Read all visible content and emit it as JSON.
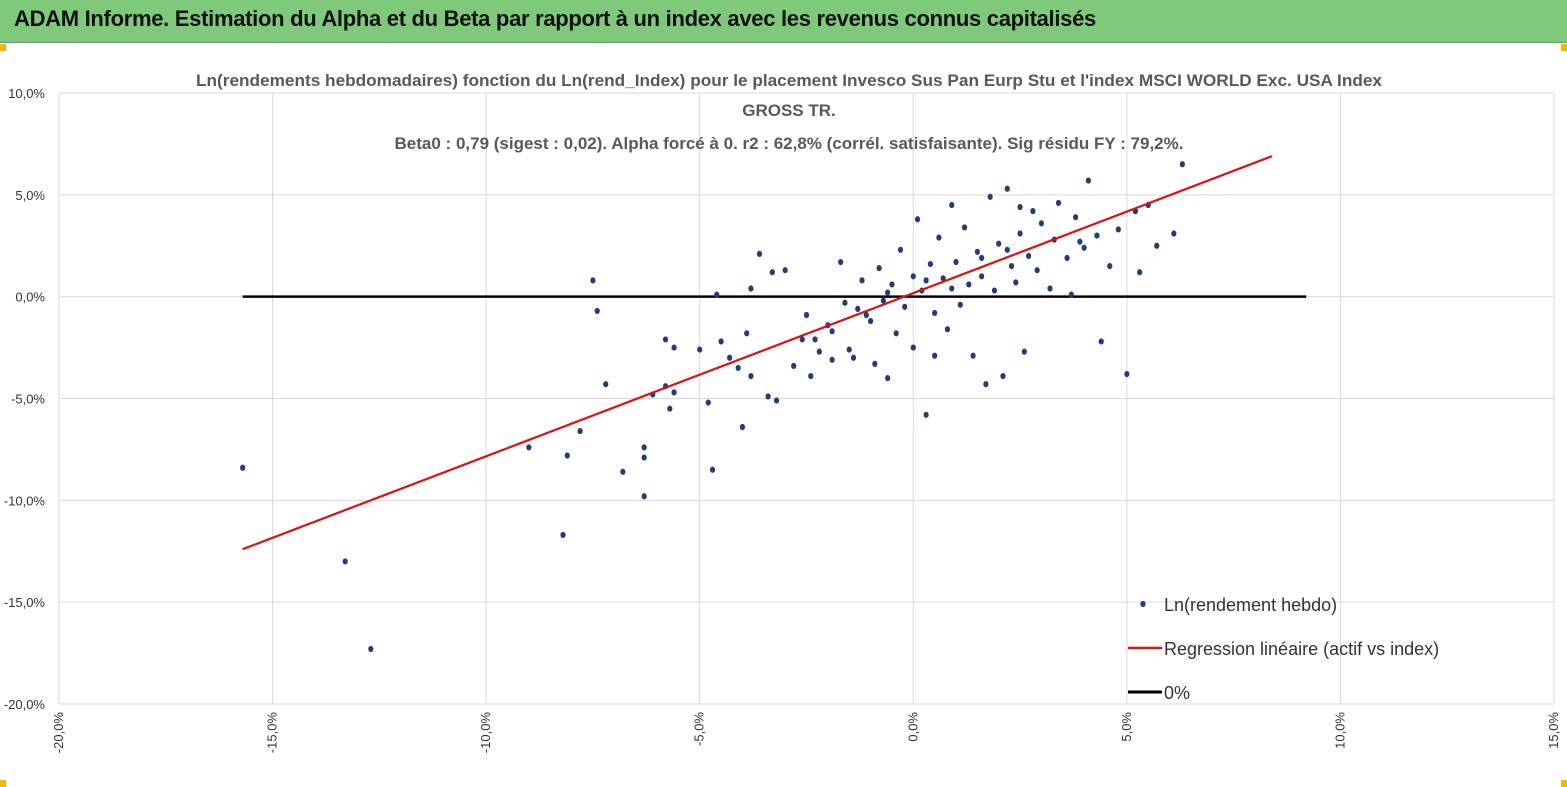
{
  "banner": {
    "title": "ADAM Informe. Estimation du Alpha et du Beta par rapport à un index avec les revenus connus capitalisés",
    "color": "#7fc97a"
  },
  "chart_data": {
    "type": "scatter",
    "title_lines": [
      "Ln(rendements hebdomadaires) fonction du Ln(rend_Index) pour le placement Invesco Sus Pan Eurp Stu  et l'index MSCI WORLD Exc. USA Index",
      "GROSS TR.",
      "Beta0 : 0,79  (sigest : 0,02).  Alpha forcé à 0. r2 : 62,8% (corrél. satisfaisante). Sig résidu FY : 79,2%."
    ],
    "xlim": [
      -20,
      15
    ],
    "ylim": [
      -20,
      10
    ],
    "x_ticks": [
      -20,
      -15,
      -10,
      -5,
      0,
      5,
      10,
      15
    ],
    "y_ticks": [
      10,
      5,
      0,
      -5,
      -10,
      -15,
      -20
    ],
    "x_tick_labels": [
      "-20,0%",
      "-15,0%",
      "-10,0%",
      "-5,0%",
      "0,0%",
      "5,0%",
      "10,0%",
      "15,0%"
    ],
    "y_tick_labels": [
      "10,0%",
      "5,0%",
      "0,0%",
      "-5,0%",
      "-10,0%",
      "-15,0%",
      "-20,0%"
    ],
    "grid": true,
    "legend_position": "bottom-right",
    "series": [
      {
        "name": "Ln(rendement hebdo)",
        "kind": "scatter",
        "color": "#1f3d7a",
        "points": [
          [
            -15.7,
            -8.4
          ],
          [
            -13.3,
            -13.0
          ],
          [
            -12.7,
            -17.3
          ],
          [
            -9.0,
            -7.4
          ],
          [
            -8.2,
            -11.7
          ],
          [
            -8.1,
            -7.8
          ],
          [
            -7.8,
            -6.6
          ],
          [
            -7.5,
            0.8
          ],
          [
            -7.4,
            -0.7
          ],
          [
            -7.2,
            -4.3
          ],
          [
            -6.8,
            -8.6
          ],
          [
            -6.3,
            -7.4
          ],
          [
            -6.3,
            -7.9
          ],
          [
            -6.3,
            -9.8
          ],
          [
            -6.1,
            -4.8
          ],
          [
            -5.8,
            -2.1
          ],
          [
            -5.8,
            -4.4
          ],
          [
            -5.7,
            -5.5
          ],
          [
            -5.6,
            -2.5
          ],
          [
            -5.6,
            -4.7
          ],
          [
            -5.0,
            -2.6
          ],
          [
            -4.8,
            -5.2
          ],
          [
            -4.7,
            -8.5
          ],
          [
            -4.6,
            0.1
          ],
          [
            -4.5,
            -2.2
          ],
          [
            -4.3,
            -3.0
          ],
          [
            -4.0,
            -6.4
          ],
          [
            -3.9,
            -1.8
          ],
          [
            -3.8,
            0.4
          ],
          [
            -3.6,
            2.1
          ],
          [
            -3.4,
            -4.9
          ],
          [
            -3.3,
            1.2
          ],
          [
            -3.2,
            -5.1
          ],
          [
            -3.0,
            1.3
          ],
          [
            -2.8,
            -3.4
          ],
          [
            -2.5,
            -0.9
          ],
          [
            -2.3,
            -2.1
          ],
          [
            -2.2,
            -2.7
          ],
          [
            -2.0,
            -1.4
          ],
          [
            -1.9,
            -3.1
          ],
          [
            -1.7,
            1.7
          ],
          [
            -1.6,
            -0.3
          ],
          [
            -1.5,
            -2.6
          ],
          [
            -1.3,
            -0.6
          ],
          [
            -1.2,
            0.8
          ],
          [
            -1.0,
            -1.2
          ],
          [
            -0.9,
            -3.3
          ],
          [
            -0.8,
            1.4
          ],
          [
            -0.7,
            -0.2
          ],
          [
            -0.5,
            0.6
          ],
          [
            -0.4,
            -1.8
          ],
          [
            -0.3,
            2.3
          ],
          [
            -0.2,
            -0.5
          ],
          [
            0.0,
            1.0
          ],
          [
            0.0,
            -2.5
          ],
          [
            0.1,
            3.8
          ],
          [
            0.2,
            0.3
          ],
          [
            0.3,
            -5.8
          ],
          [
            0.4,
            1.6
          ],
          [
            0.5,
            -0.8
          ],
          [
            0.6,
            2.9
          ],
          [
            0.7,
            0.9
          ],
          [
            0.8,
            -1.6
          ],
          [
            0.9,
            4.5
          ],
          [
            1.0,
            1.7
          ],
          [
            1.1,
            -0.4
          ],
          [
            1.2,
            3.4
          ],
          [
            1.3,
            0.6
          ],
          [
            1.4,
            -2.9
          ],
          [
            1.5,
            2.2
          ],
          [
            1.6,
            1.0
          ],
          [
            1.7,
            -4.3
          ],
          [
            1.8,
            4.9
          ],
          [
            1.9,
            0.3
          ],
          [
            2.0,
            2.6
          ],
          [
            2.1,
            -3.9
          ],
          [
            2.2,
            5.3
          ],
          [
            2.3,
            1.5
          ],
          [
            2.4,
            0.7
          ],
          [
            2.5,
            3.1
          ],
          [
            2.6,
            -2.7
          ],
          [
            2.7,
            2.0
          ],
          [
            2.8,
            4.2
          ],
          [
            2.9,
            1.3
          ],
          [
            3.0,
            3.6
          ],
          [
            3.2,
            0.4
          ],
          [
            3.3,
            2.8
          ],
          [
            3.4,
            4.6
          ],
          [
            3.6,
            1.9
          ],
          [
            3.7,
            0.1
          ],
          [
            3.8,
            3.9
          ],
          [
            4.0,
            2.4
          ],
          [
            4.1,
            5.7
          ],
          [
            4.3,
            3.0
          ],
          [
            4.4,
            -2.2
          ],
          [
            4.6,
            1.5
          ],
          [
            4.8,
            3.3
          ],
          [
            5.0,
            -3.8
          ],
          [
            5.2,
            4.2
          ],
          [
            5.3,
            1.2
          ],
          [
            5.5,
            4.5
          ],
          [
            5.7,
            2.5
          ],
          [
            6.1,
            3.1
          ],
          [
            6.3,
            6.5
          ],
          [
            -2.6,
            -2.1
          ],
          [
            -1.9,
            -1.7
          ],
          [
            -1.1,
            -0.9
          ],
          [
            -0.6,
            0.2
          ],
          [
            0.3,
            0.8
          ],
          [
            0.9,
            0.4
          ],
          [
            1.6,
            1.9
          ],
          [
            2.2,
            2.3
          ],
          [
            0.5,
            -2.9
          ],
          [
            -3.8,
            -3.9
          ],
          [
            -4.1,
            -3.5
          ],
          [
            -2.4,
            -3.9
          ],
          [
            -1.4,
            -3.0
          ],
          [
            3.9,
            2.7
          ],
          [
            2.5,
            4.4
          ],
          [
            -0.6,
            -4.0
          ]
        ]
      },
      {
        "name": "Regression linéaire (actif vs index)",
        "kind": "line",
        "color": "#e01010",
        "points": [
          [
            -15.7,
            -12.4
          ],
          [
            8.4,
            6.9
          ]
        ]
      },
      {
        "name": "0%",
        "kind": "line",
        "color": "#000000",
        "points": [
          [
            -15.7,
            0.0
          ],
          [
            9.2,
            0.0
          ]
        ]
      }
    ]
  }
}
